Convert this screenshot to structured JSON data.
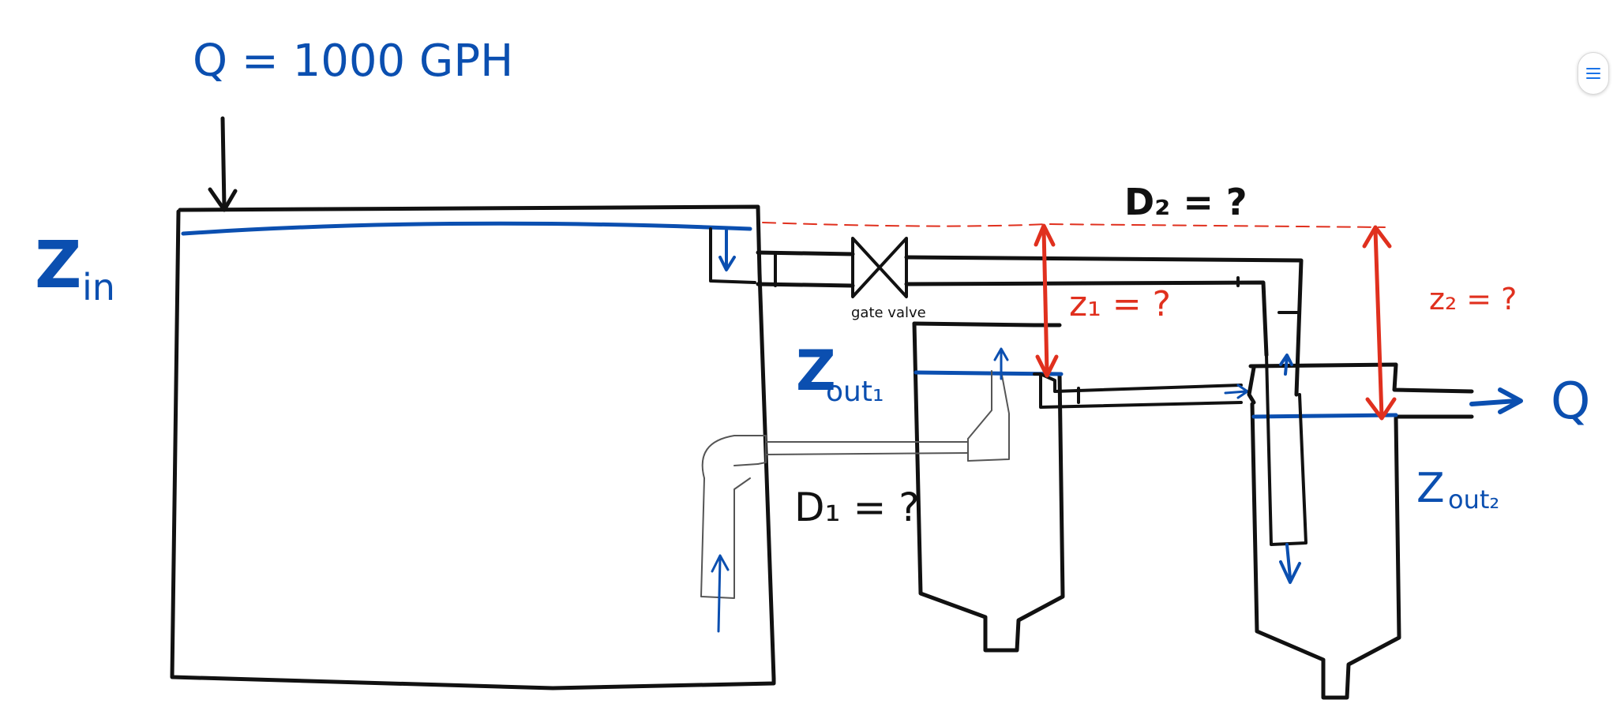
{
  "labels": {
    "flow_rate": "Q = 1000 GPH",
    "z_in_main": "Z",
    "z_in_sub": "in",
    "d2": "D₂ = ?",
    "gate_valve": "gate valve",
    "z1": "z₁ = ?",
    "z2": "z₂ = ?",
    "z_out1_main": "Z",
    "z_out1_sub": "out₁",
    "d1": "D₁ = ?",
    "q_out": "Q",
    "z_out2_main": "Z",
    "z_out2_sub": "out₂"
  },
  "colors": {
    "blue_ink": "#0b4fb0",
    "red_ink": "#e0301e",
    "black_ink": "#111111",
    "menu_accent": "#1a73e8"
  },
  "toolbar": {
    "menu_icon": "hamburger-menu-icon"
  }
}
